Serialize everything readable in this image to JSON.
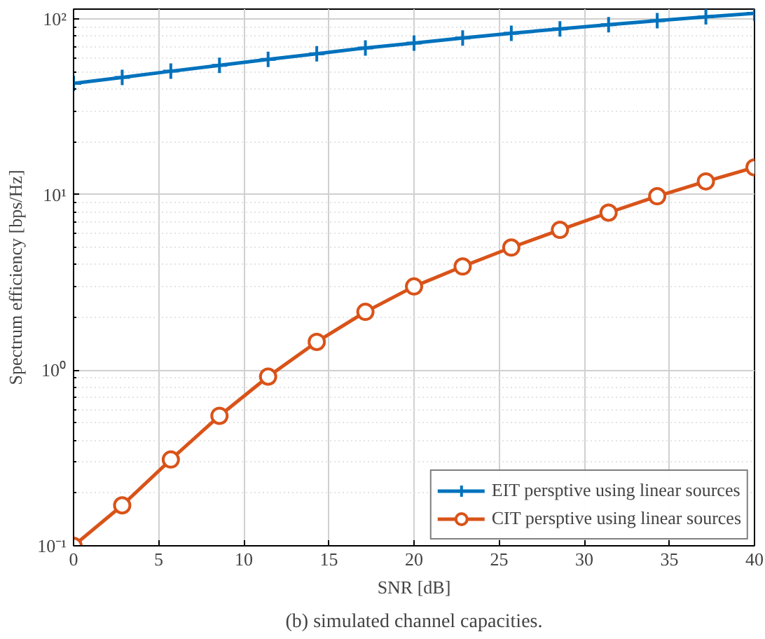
{
  "chart_data": {
    "type": "line",
    "xlabel": "SNR [dB]",
    "ylabel": "Spectrum efficiency [bps/Hz]",
    "annotations": [
      "(b) simulated channel capacities."
    ],
    "x": [
      0,
      2.857,
      5.714,
      8.571,
      11.429,
      14.286,
      17.143,
      20,
      22.857,
      25.714,
      28.571,
      31.429,
      34.286,
      37.143,
      40
    ],
    "series": [
      {
        "name": "EIT persptive using linear sources",
        "color": "#0072bd",
        "marker": "cross",
        "values": [
          43,
          46.5,
          50.5,
          54.5,
          59,
          63.5,
          68.5,
          73,
          78,
          83,
          88,
          93,
          98,
          103,
          108
        ]
      },
      {
        "name": "CIT persptive using linear sources",
        "color": "#d95319",
        "marker": "circle",
        "values": [
          0.1,
          0.17,
          0.31,
          0.55,
          0.92,
          1.45,
          2.15,
          3.0,
          3.9,
          5.0,
          6.3,
          7.9,
          9.8,
          11.9,
          14.3
        ]
      }
    ],
    "xlim": [
      0,
      40
    ],
    "xticks": [
      0,
      5,
      10,
      15,
      20,
      25,
      30,
      35,
      40
    ],
    "ylim": [
      0.1,
      114
    ],
    "log": true,
    "yticks": [
      {
        "value": 0.1,
        "label": "10⁻¹"
      },
      {
        "value": 1,
        "label": "10⁰"
      },
      {
        "value": 10,
        "label": "10¹"
      },
      {
        "value": 100,
        "label": "10²"
      }
    ],
    "grid": true,
    "legend": "bottom right",
    "line_style": "solid"
  }
}
